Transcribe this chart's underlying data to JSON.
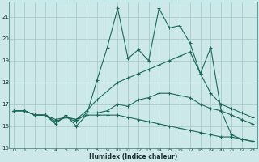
{
  "xlabel": "Humidex (Indice chaleur)",
  "bg_color": "#cce8e8",
  "grid_color": "#aacccc",
  "line_color": "#1a6b5a",
  "xlim": [
    -0.5,
    23.5
  ],
  "ylim": [
    15,
    21.7
  ],
  "yticks": [
    15,
    16,
    17,
    18,
    19,
    20,
    21
  ],
  "xticks": [
    0,
    1,
    2,
    3,
    4,
    5,
    6,
    7,
    8,
    9,
    10,
    11,
    12,
    13,
    14,
    15,
    16,
    17,
    18,
    19,
    20,
    21,
    22,
    23
  ],
  "series": [
    [
      16.7,
      16.7,
      16.5,
      16.5,
      16.1,
      16.5,
      16.0,
      16.5,
      18.1,
      19.6,
      21.4,
      19.1,
      19.5,
      19.0,
      21.4,
      20.5,
      20.6,
      19.8,
      18.4,
      19.6,
      16.7,
      15.6,
      15.4,
      15.3
    ],
    [
      16.7,
      16.7,
      16.5,
      16.5,
      16.2,
      16.4,
      16.3,
      16.7,
      17.2,
      17.6,
      18.0,
      18.2,
      18.4,
      18.6,
      18.8,
      19.0,
      19.2,
      19.4,
      18.4,
      17.5,
      17.0,
      16.8,
      16.6,
      16.4
    ],
    [
      16.7,
      16.7,
      16.5,
      16.5,
      16.2,
      16.4,
      16.3,
      16.5,
      16.5,
      16.5,
      16.5,
      16.4,
      16.3,
      16.2,
      16.1,
      16.0,
      15.9,
      15.8,
      15.7,
      15.6,
      15.5,
      15.5,
      15.4,
      15.3
    ],
    [
      16.7,
      16.7,
      16.5,
      16.5,
      16.3,
      16.4,
      16.2,
      16.6,
      16.6,
      16.7,
      17.0,
      16.9,
      17.2,
      17.3,
      17.5,
      17.5,
      17.4,
      17.3,
      17.0,
      16.8,
      16.7,
      16.5,
      16.3,
      16.1
    ]
  ]
}
